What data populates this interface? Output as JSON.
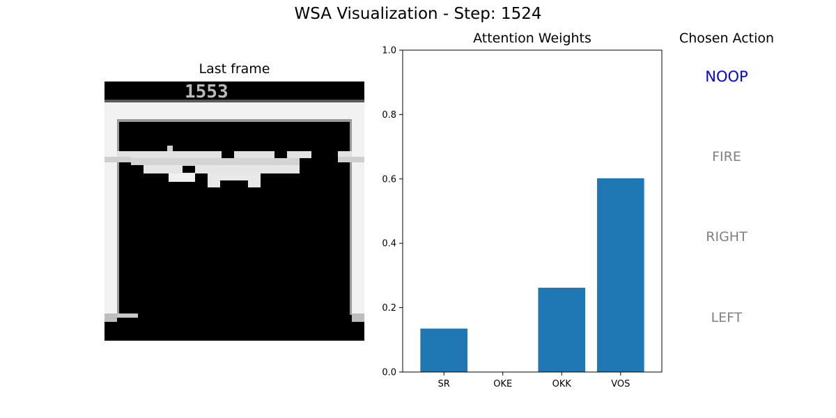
{
  "title": "WSA Visualization - Step: 1524",
  "frame_panel": {
    "title": "Last frame",
    "score_text": "1553"
  },
  "chart_data": {
    "type": "bar",
    "title": "Attention Weights",
    "categories": [
      "SR",
      "OKE",
      "OKK",
      "VOS"
    ],
    "values": [
      0.135,
      0.0,
      0.262,
      0.602
    ],
    "ylim": [
      0,
      1
    ],
    "yticks": [
      0.0,
      0.2,
      0.4,
      0.6,
      0.8,
      1.0
    ],
    "ytick_labels": [
      "0.0",
      "0.2",
      "0.4",
      "0.6",
      "0.8",
      "1.0"
    ],
    "xlabel": "",
    "ylabel": "",
    "grid": false,
    "bar_color": "#1f77b4"
  },
  "action_panel": {
    "title": "Chosen Action",
    "actions": [
      "NOOP",
      "FIRE",
      "RIGHT",
      "LEFT"
    ],
    "selected": "NOOP",
    "selected_color": "#0000ff",
    "unselected_color": "#808080"
  }
}
